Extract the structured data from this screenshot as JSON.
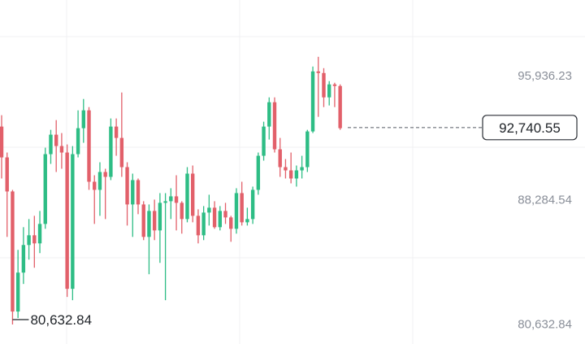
{
  "chart_data": {
    "type": "candlestick",
    "y_ticks": [
      {
        "value": 95936.23,
        "label": "95,936.23"
      },
      {
        "value": 88284.54,
        "label": "88,284.54"
      },
      {
        "value": 80632.84,
        "label": "80,632.84"
      }
    ],
    "ylim": [
      79400,
      100600
    ],
    "current_price": {
      "value": 92740.55,
      "label": "92,740.55"
    },
    "period_low": {
      "value": 80632.84,
      "label": "80,632.84"
    },
    "colors": {
      "up": "#2ebd85",
      "down": "#e2606a",
      "grid": "#f0f1f3",
      "axis_text": "#8a8f99"
    },
    "candles": [
      [
        92800,
        93500,
        89600,
        90900
      ],
      [
        90900,
        91200,
        86000,
        88800
      ],
      [
        88800,
        88900,
        80600,
        81400
      ],
      [
        81400,
        85200,
        81000,
        83800
      ],
      [
        83800,
        86600,
        83100,
        85500
      ],
      [
        85500,
        87100,
        84600,
        86100
      ],
      [
        86100,
        87300,
        84100,
        85600
      ],
      [
        85600,
        87600,
        85000,
        86800
      ],
      [
        86800,
        91500,
        86500,
        91100
      ],
      [
        91100,
        92600,
        90500,
        92300
      ],
      [
        92300,
        93200,
        90000,
        91600
      ],
      [
        91600,
        92400,
        90200,
        91200
      ],
      [
        91200,
        91700,
        82300,
        82800
      ],
      [
        82800,
        91600,
        82100,
        91100
      ],
      [
        91100,
        93800,
        90900,
        92700
      ],
      [
        92700,
        94500,
        91800,
        93800
      ],
      [
        93800,
        94000,
        88900,
        89400
      ],
      [
        89400,
        89800,
        86800,
        88900
      ],
      [
        88900,
        90600,
        87300,
        90000
      ],
      [
        90000,
        90200,
        87100,
        89700
      ],
      [
        89700,
        93300,
        89500,
        92800
      ],
      [
        92800,
        93300,
        91000,
        92100
      ],
      [
        92100,
        94900,
        89700,
        90300
      ],
      [
        90300,
        90600,
        86700,
        88000
      ],
      [
        88000,
        89900,
        86000,
        89500
      ],
      [
        89500,
        89600,
        87400,
        88000
      ],
      [
        88000,
        88200,
        85800,
        86000
      ],
      [
        86000,
        88000,
        83700,
        87600
      ],
      [
        87600,
        88300,
        85800,
        86400
      ],
      [
        86400,
        88700,
        84400,
        88100
      ],
      [
        88100,
        88700,
        82100,
        88200
      ],
      [
        88200,
        89000,
        87100,
        88500
      ],
      [
        88500,
        89800,
        86400,
        88100
      ],
      [
        88100,
        88200,
        86200,
        87100
      ],
      [
        87100,
        90300,
        86900,
        89900
      ],
      [
        89900,
        90400,
        86900,
        87300
      ],
      [
        87300,
        87700,
        85600,
        86100
      ],
      [
        86100,
        87900,
        85800,
        87500
      ],
      [
        87500,
        88600,
        86700,
        87800
      ],
      [
        87800,
        88200,
        86500,
        86600
      ],
      [
        86600,
        87900,
        86400,
        87600
      ],
      [
        87600,
        88100,
        86800,
        87200
      ],
      [
        87200,
        87300,
        85700,
        86500
      ],
      [
        86500,
        89000,
        86200,
        88700
      ],
      [
        88700,
        89400,
        86700,
        86900
      ],
      [
        86900,
        87800,
        86700,
        87100
      ],
      [
        87100,
        89100,
        86800,
        88900
      ],
      [
        88900,
        91200,
        88600,
        91000
      ],
      [
        91000,
        93100,
        90700,
        92800
      ],
      [
        92800,
        94600,
        92000,
        94300
      ],
      [
        94300,
        94600,
        91200,
        91400
      ],
      [
        91400,
        92100,
        89700,
        90300
      ],
      [
        90300,
        90800,
        89600,
        90100
      ],
      [
        90100,
        91200,
        89300,
        89600
      ],
      [
        89600,
        90400,
        89100,
        90100
      ],
      [
        90100,
        91000,
        89600,
        90300
      ],
      [
        90300,
        92600,
        90000,
        92500
      ],
      [
        92500,
        96500,
        92400,
        96200
      ],
      [
        96200,
        97100,
        93400,
        96100
      ],
      [
        96100,
        96400,
        94000,
        94600
      ],
      [
        94600,
        95600,
        94100,
        95400
      ],
      [
        95400,
        95500,
        94000,
        95300
      ],
      [
        95300,
        95400,
        92600,
        92700
      ]
    ]
  }
}
